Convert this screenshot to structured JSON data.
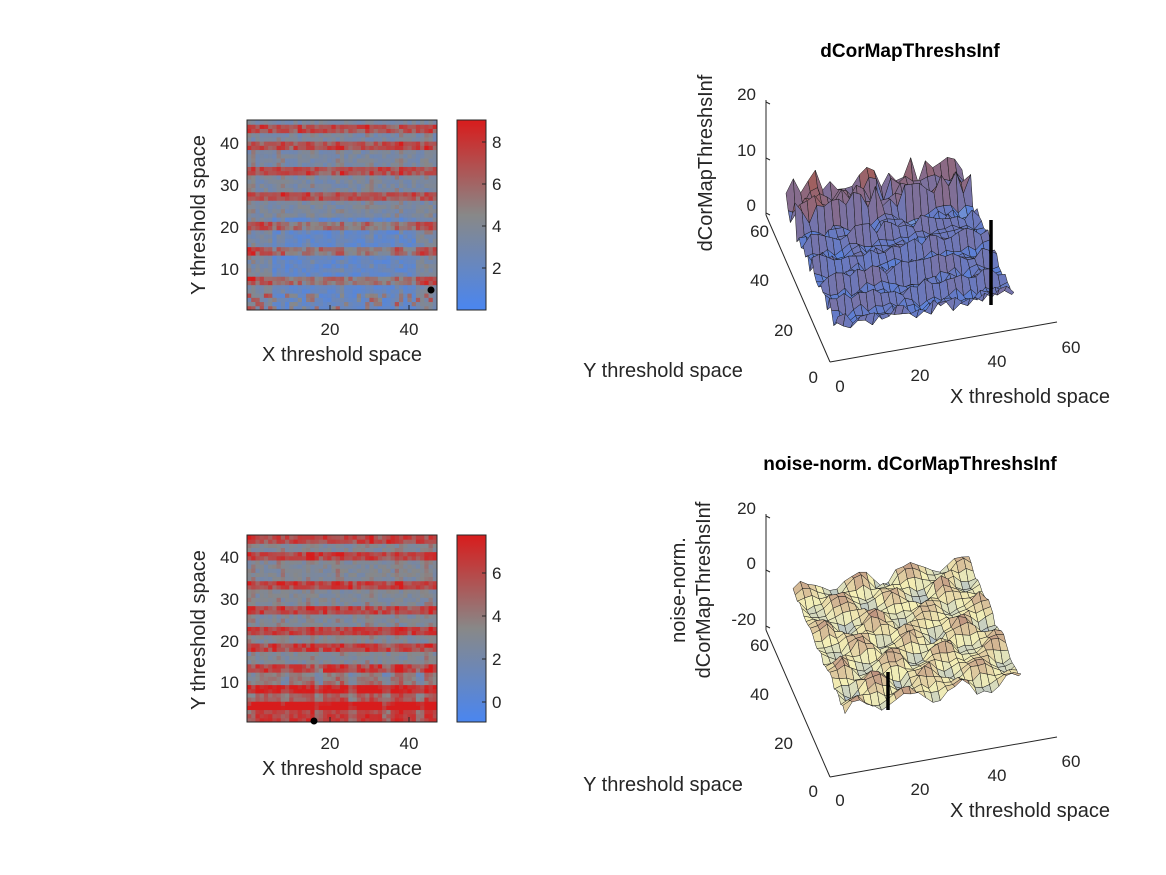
{
  "chart_data": [
    {
      "type": "heatmap",
      "id": "heatmap-top",
      "xlabel": "X threshold space",
      "ylabel": "Y threshold space",
      "x_ticks": [
        "20",
        "40"
      ],
      "y_ticks": [
        "10",
        "20",
        "30",
        "40"
      ],
      "grid_size": [
        45,
        45
      ],
      "colorbar": {
        "ticks": [
          "2",
          "4",
          "6",
          "8"
        ],
        "range": [
          0,
          9
        ],
        "low_color": "#4a86f0",
        "mid_color": "#888888",
        "high_color": "#d81c1c"
      },
      "row_pattern_highlights": [
        7,
        14,
        20,
        27,
        33,
        39,
        43
      ],
      "marker": {
        "x": 44,
        "y": 5
      }
    },
    {
      "type": "surface",
      "id": "surface-top",
      "title": "dCorMapThreshsInf",
      "xlabel": "X threshold space",
      "ylabel": "Y threshold space",
      "zlabel": "dCorMapThreshsInf",
      "x_ticks": [
        "0",
        "20",
        "40",
        "60"
      ],
      "y_ticks": [
        "0",
        "20",
        "40",
        "60"
      ],
      "z_ticks": [
        "0",
        "10",
        "20"
      ],
      "colors": {
        "low": "#f5f0b6",
        "mid": "#5b80d8",
        "high": "#a06060"
      },
      "marker_line": "vertical black line at the maximum"
    },
    {
      "type": "heatmap",
      "id": "heatmap-bottom",
      "xlabel": "X threshold space",
      "ylabel": "Y threshold space",
      "x_ticks": [
        "20",
        "40"
      ],
      "y_ticks": [
        "10",
        "20",
        "30",
        "40"
      ],
      "grid_size": [
        45,
        45
      ],
      "colorbar": {
        "ticks": [
          "0",
          "2",
          "4",
          "6"
        ],
        "range": [
          -1,
          7.8
        ],
        "low_color": "#4a86f0",
        "mid_color": "#888888",
        "high_color": "#d81c1c"
      },
      "row_pattern_highlights": [
        4,
        8,
        13,
        18,
        22,
        27,
        33,
        40,
        44
      ],
      "marker": {
        "x": 16,
        "y": 0
      }
    },
    {
      "type": "surface",
      "id": "surface-bottom",
      "title": "noise-norm. dCorMapThreshsInf",
      "xlabel": "X threshold space",
      "ylabel": "Y threshold space",
      "zlabel_lines": [
        "noise-norm.",
        "dCorMapThreshsInf"
      ],
      "x_ticks": [
        "0",
        "20",
        "40",
        "60"
      ],
      "y_ticks": [
        "0",
        "20",
        "40",
        "60"
      ],
      "z_ticks": [
        "-20",
        "0",
        "20"
      ],
      "colors": {
        "low": "#f5f0b6",
        "mid": "#5b80d8",
        "high": "#a06060"
      },
      "marker_line": "vertical black line at the minimum"
    }
  ]
}
